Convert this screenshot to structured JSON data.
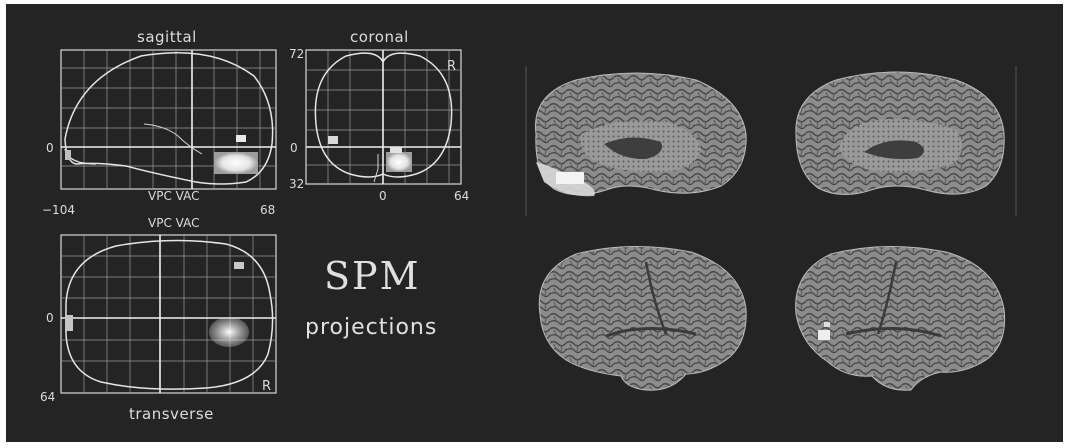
{
  "figure": {
    "background": "#252424",
    "line_color": "#e6e6e6",
    "activation_color": "#ffffff",
    "cortex_color": "#8f8f8f"
  },
  "glass_brain": {
    "sagittal": {
      "title": "sagittal",
      "y_tick_zero": "0",
      "landmark_label": "VPC VAC",
      "x_min_label": "−104",
      "x_max_label": "68"
    },
    "coronal": {
      "title": "coronal",
      "y_top_label": "72",
      "y_zero_label": "0",
      "y_bottom_label": "32",
      "x_zero_label": "0",
      "x_max_label": "64",
      "orientation_label": "R"
    },
    "transverse": {
      "title": "transverse",
      "landmark_label": "VPC VAC",
      "y_zero_label": "0",
      "y_bottom_label": "64",
      "orientation_label": "R"
    }
  },
  "caption": {
    "title": "SPM",
    "subtitle": "projections"
  },
  "renderings": [
    {
      "view": "medial",
      "hemisphere": "left"
    },
    {
      "view": "medial",
      "hemisphere": "right"
    },
    {
      "view": "lateral",
      "hemisphere": "left"
    },
    {
      "view": "lateral",
      "hemisphere": "right"
    }
  ]
}
